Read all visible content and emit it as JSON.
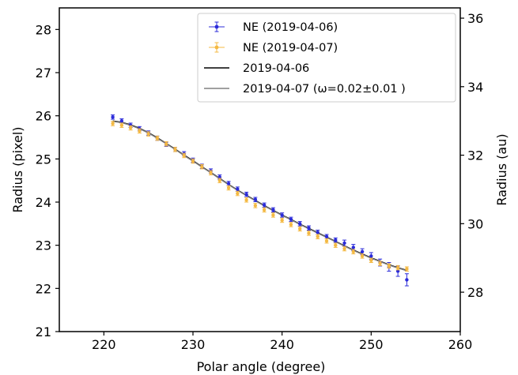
{
  "chart_data": {
    "type": "scatter",
    "xlabel": "Polar angle (degree)",
    "ylabel": "Radius (pixel)",
    "ylabel_right": "Radius (au)",
    "xlim": [
      215,
      260
    ],
    "ylim": [
      21,
      28.5
    ],
    "ylim_right": [
      26.85,
      36.3
    ],
    "xticks": [
      "220",
      "230",
      "240",
      "250",
      "260"
    ],
    "yticks": [
      "21",
      "22",
      "23",
      "24",
      "25",
      "26",
      "27",
      "28"
    ],
    "yticks_right": [
      "28",
      "30",
      "32",
      "34",
      "36"
    ],
    "grid": false,
    "legend_position": "top-right",
    "series": [
      {
        "name": "NE (2019-04-06)",
        "kind": "errorbar",
        "color": "#2b2bd9",
        "x": [
          221,
          222,
          223,
          224,
          225,
          226,
          227,
          228,
          229,
          230,
          231,
          232,
          233,
          234,
          235,
          236,
          237,
          238,
          239,
          240,
          241,
          242,
          243,
          244,
          245,
          246,
          247,
          248,
          249,
          250,
          251,
          252,
          253,
          254
        ],
        "y": [
          25.97,
          25.88,
          25.78,
          25.7,
          25.6,
          25.48,
          25.34,
          25.22,
          25.12,
          24.97,
          24.83,
          24.72,
          24.58,
          24.43,
          24.3,
          24.18,
          24.06,
          23.93,
          23.82,
          23.7,
          23.6,
          23.5,
          23.4,
          23.3,
          23.2,
          23.12,
          23.05,
          22.95,
          22.85,
          22.75,
          22.6,
          22.5,
          22.4,
          22.2
        ],
        "err": [
          0.05,
          0.05,
          0.05,
          0.05,
          0.05,
          0.05,
          0.05,
          0.05,
          0.05,
          0.05,
          0.05,
          0.05,
          0.05,
          0.05,
          0.05,
          0.05,
          0.05,
          0.05,
          0.05,
          0.05,
          0.05,
          0.05,
          0.05,
          0.05,
          0.05,
          0.05,
          0.07,
          0.07,
          0.07,
          0.08,
          0.08,
          0.1,
          0.12,
          0.14
        ]
      },
      {
        "name": "NE (2019-04-07)",
        "kind": "errorbar",
        "color": "#f4b942",
        "x": [
          221,
          222,
          223,
          224,
          225,
          226,
          227,
          228,
          229,
          230,
          231,
          232,
          233,
          234,
          235,
          236,
          237,
          238,
          239,
          240,
          241,
          242,
          243,
          244,
          245,
          246,
          247,
          248,
          249,
          250,
          251,
          252,
          253,
          254
        ],
        "y": [
          25.82,
          25.78,
          25.72,
          25.65,
          25.58,
          25.48,
          25.35,
          25.22,
          25.08,
          24.95,
          24.82,
          24.68,
          24.5,
          24.33,
          24.2,
          24.05,
          23.92,
          23.82,
          23.7,
          23.58,
          23.48,
          23.38,
          23.28,
          23.2,
          23.1,
          23.0,
          22.92,
          22.85,
          22.75,
          22.65,
          22.58,
          22.52,
          22.48,
          22.45
        ],
        "err": [
          0.05,
          0.05,
          0.05,
          0.05,
          0.05,
          0.05,
          0.05,
          0.05,
          0.05,
          0.05,
          0.05,
          0.05,
          0.05,
          0.05,
          0.05,
          0.05,
          0.05,
          0.05,
          0.05,
          0.05,
          0.05,
          0.05,
          0.05,
          0.05,
          0.05,
          0.05,
          0.05,
          0.05,
          0.05,
          0.05,
          0.05,
          0.05,
          0.05,
          0.05
        ]
      },
      {
        "name": "2019-04-06",
        "kind": "line",
        "color": "#000000",
        "x": [
          221,
          222,
          223,
          224,
          225,
          226,
          227,
          228,
          229,
          230,
          231,
          232,
          233,
          234,
          235,
          236,
          237,
          238,
          239,
          240,
          241,
          242,
          243,
          244,
          245,
          246,
          247,
          248,
          249,
          250,
          251,
          252,
          253,
          254
        ],
        "y": [
          25.88,
          25.85,
          25.79,
          25.71,
          25.61,
          25.49,
          25.36,
          25.23,
          25.09,
          24.96,
          24.82,
          24.69,
          24.55,
          24.41,
          24.28,
          24.16,
          24.04,
          23.92,
          23.81,
          23.7,
          23.6,
          23.49,
          23.39,
          23.29,
          23.19,
          23.09,
          22.99,
          22.89,
          22.8,
          22.71,
          22.63,
          22.55,
          22.48,
          22.42
        ]
      },
      {
        "name": "2019-04-07 (ω=0.02±0.01 )",
        "kind": "line",
        "color": "#808080",
        "x": [
          221,
          222,
          223,
          224,
          225,
          226,
          227,
          228,
          229,
          230,
          231,
          232,
          233,
          234,
          235,
          236,
          237,
          238,
          239,
          240,
          241,
          242,
          243,
          244,
          245,
          246,
          247,
          248,
          249,
          250,
          251,
          252,
          253,
          254
        ],
        "y": [
          25.87,
          25.84,
          25.78,
          25.7,
          25.6,
          25.48,
          25.35,
          25.22,
          25.08,
          24.95,
          24.81,
          24.68,
          24.54,
          24.4,
          24.27,
          24.15,
          24.03,
          23.91,
          23.8,
          23.69,
          23.59,
          23.48,
          23.38,
          23.28,
          23.18,
          23.08,
          22.98,
          22.88,
          22.79,
          22.7,
          22.62,
          22.54,
          22.47,
          22.41
        ]
      }
    ]
  }
}
